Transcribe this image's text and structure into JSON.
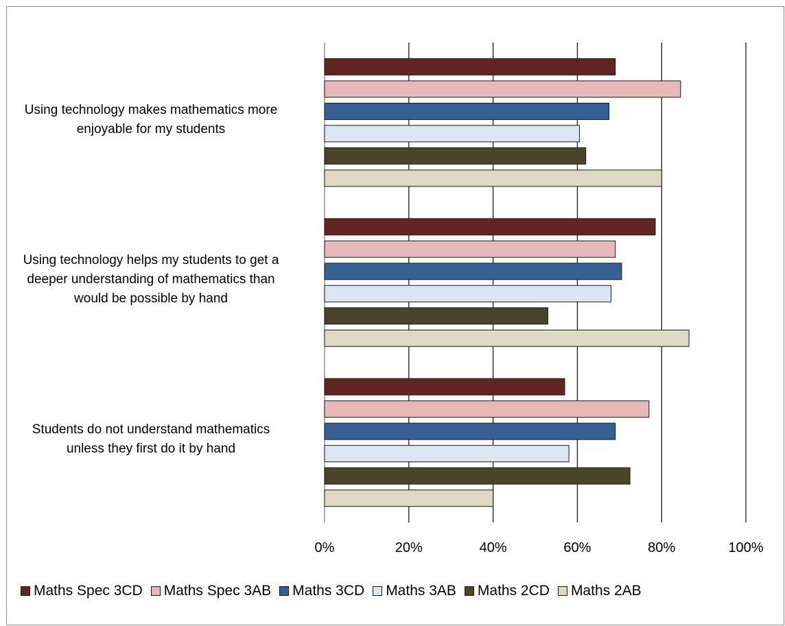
{
  "chart_data": {
    "type": "bar",
    "orientation": "horizontal",
    "categories": [
      "Using technology makes mathematics more enjoyable for my students",
      "Using technology helps my students to get a deeper understanding of mathematics than would be possible by hand",
      "Students do not understand mathematics unless they first do it by hand"
    ],
    "category_lines": [
      [
        "Using technology makes mathematics more",
        "enjoyable for my students"
      ],
      [
        "Using technology helps my students to get a",
        "deeper understanding of mathematics than",
        "would be possible by hand"
      ],
      [
        "Students do not understand mathematics",
        "unless they first do it by hand"
      ]
    ],
    "series": [
      {
        "name": "Maths Spec 3CD",
        "color": "#632523",
        "values": [
          69,
          78.5,
          57
        ]
      },
      {
        "name": "Maths Spec 3AB",
        "color": "#e6b9b8",
        "values": [
          84.5,
          69,
          77
        ]
      },
      {
        "name": "Maths 3CD",
        "color": "#366092",
        "values": [
          67.5,
          70.5,
          69
        ]
      },
      {
        "name": "Maths 3AB",
        "color": "#dce6f2",
        "values": [
          60.5,
          68,
          58
        ]
      },
      {
        "name": "Maths 2CD",
        "color": "#494529",
        "values": [
          62,
          53,
          72.5
        ]
      },
      {
        "name": "Maths 2AB",
        "color": "#ddd9c4",
        "values": [
          80,
          86.5,
          40
        ]
      }
    ],
    "xlim": [
      0,
      100
    ],
    "xticks": [
      "0%",
      "20%",
      "40%",
      "60%",
      "80%",
      "100%"
    ],
    "grid": true,
    "legend_position": "bottom"
  }
}
